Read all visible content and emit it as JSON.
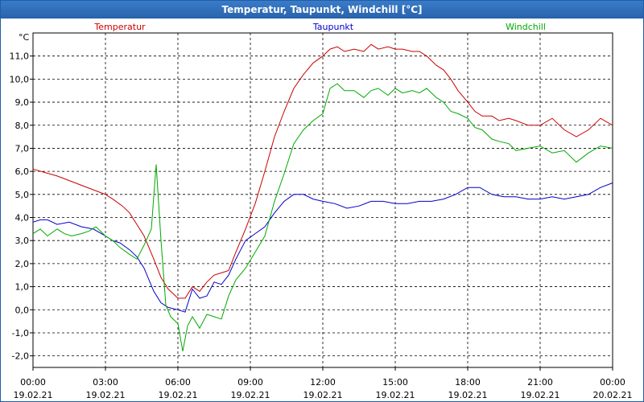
{
  "window": {
    "title": "Temperatur, Taupunkt, Windchill [°C]"
  },
  "chart_data": {
    "type": "line",
    "title": "Temperatur, Taupunkt, Windchill [°C]",
    "ylabel": "°C",
    "xlabel": "",
    "ylim": [
      -2.5,
      12.0
    ],
    "xlim": [
      0,
      24
    ],
    "yticks": [
      "-2,0",
      "-1,0",
      "0,0",
      "1,0",
      "2,0",
      "3,0",
      "4,0",
      "5,0",
      "6,0",
      "7,0",
      "8,0",
      "9,0",
      "10,0",
      "11,0"
    ],
    "ytick_values": [
      -2,
      -1,
      0,
      1,
      2,
      3,
      4,
      5,
      6,
      7,
      8,
      9,
      10,
      11
    ],
    "xticks": [
      {
        "time": "00:00",
        "date": "19.02.21",
        "hour": 0
      },
      {
        "time": "03:00",
        "date": "19.02.21",
        "hour": 3
      },
      {
        "time": "06:00",
        "date": "19.02.21",
        "hour": 6
      },
      {
        "time": "09:00",
        "date": "19.02.21",
        "hour": 9
      },
      {
        "time": "12:00",
        "date": "19.02.21",
        "hour": 12
      },
      {
        "time": "15:00",
        "date": "19.02.21",
        "hour": 15
      },
      {
        "time": "18:00",
        "date": "19.02.21",
        "hour": 18
      },
      {
        "time": "21:00",
        "date": "19.02.21",
        "hour": 21
      },
      {
        "time": "00:00",
        "date": "20.02.21",
        "hour": 24
      }
    ],
    "grid": true,
    "series": [
      {
        "name": "Temperatur",
        "color": "#cc0000",
        "x": [
          0,
          0.5,
          1,
          1.5,
          2,
          2.5,
          3,
          3.3,
          3.7,
          4,
          4.3,
          4.6,
          5,
          5.3,
          5.6,
          6,
          6.3,
          6.6,
          6.9,
          7.2,
          7.5,
          7.8,
          8.1,
          8.4,
          8.8,
          9.2,
          9.6,
          10,
          10.4,
          10.8,
          11.2,
          11.6,
          12,
          12.3,
          12.6,
          12.9,
          13.3,
          13.7,
          14,
          14.3,
          14.7,
          15,
          15.3,
          15.7,
          16,
          16.3,
          16.7,
          17,
          17.3,
          17.6,
          18,
          18.3,
          18.6,
          19,
          19.3,
          19.7,
          20,
          20.5,
          21,
          21.5,
          22,
          22.5,
          23,
          23.5,
          24
        ],
        "y": [
          6.1,
          5.95,
          5.8,
          5.6,
          5.4,
          5.2,
          5.0,
          4.8,
          4.5,
          4.2,
          3.7,
          3.2,
          2.2,
          1.4,
          0.9,
          0.5,
          0.5,
          1.0,
          0.8,
          1.2,
          1.5,
          1.6,
          1.7,
          2.5,
          3.5,
          4.6,
          6.0,
          7.5,
          8.6,
          9.6,
          10.2,
          10.7,
          11.0,
          11.3,
          11.4,
          11.2,
          11.3,
          11.2,
          11.5,
          11.3,
          11.4,
          11.3,
          11.3,
          11.2,
          11.2,
          11.0,
          10.6,
          10.4,
          10.0,
          9.5,
          9.0,
          8.6,
          8.4,
          8.4,
          8.2,
          8.3,
          8.2,
          8.0,
          8.0,
          8.3,
          7.8,
          7.5,
          7.8,
          8.3,
          8.0
        ]
      },
      {
        "name": "Taupunkt",
        "color": "#0000cc",
        "x": [
          0,
          0.3,
          0.6,
          1,
          1.5,
          2,
          2.5,
          3,
          3.3,
          3.6,
          4,
          4.3,
          4.6,
          5,
          5.3,
          5.6,
          6,
          6.3,
          6.6,
          6.9,
          7.2,
          7.5,
          7.8,
          8.1,
          8.4,
          8.8,
          9.2,
          9.6,
          10,
          10.4,
          10.8,
          11.2,
          11.6,
          12,
          12.5,
          13,
          13.5,
          14,
          14.5,
          15,
          15.5,
          16,
          16.5,
          17,
          17.5,
          18,
          18.5,
          19,
          19.5,
          20,
          20.5,
          21,
          21.5,
          22,
          22.5,
          23,
          23.5,
          24
        ],
        "y": [
          3.8,
          3.9,
          3.9,
          3.7,
          3.8,
          3.6,
          3.5,
          3.2,
          3.0,
          2.9,
          2.6,
          2.3,
          1.8,
          0.8,
          0.3,
          0.1,
          0.0,
          -0.1,
          0.9,
          0.5,
          0.6,
          1.2,
          1.1,
          1.5,
          2.2,
          3.0,
          3.3,
          3.6,
          4.2,
          4.7,
          5.0,
          5.0,
          4.8,
          4.7,
          4.6,
          4.4,
          4.5,
          4.7,
          4.7,
          4.6,
          4.6,
          4.7,
          4.7,
          4.8,
          5.0,
          5.3,
          5.3,
          5.0,
          4.9,
          4.9,
          4.8,
          4.8,
          4.9,
          4.8,
          4.9,
          5.0,
          5.3,
          5.5
        ]
      },
      {
        "name": "Windchill",
        "color": "#00aa00",
        "x": [
          0,
          0.3,
          0.6,
          1,
          1.3,
          1.6,
          2,
          2.3,
          2.6,
          3,
          3.3,
          3.6,
          4,
          4.3,
          4.6,
          4.9,
          5.1,
          5.3,
          5.5,
          5.7,
          6,
          6.2,
          6.4,
          6.6,
          6.9,
          7.2,
          7.5,
          7.8,
          8.1,
          8.4,
          8.8,
          9.2,
          9.6,
          10,
          10.4,
          10.8,
          11.2,
          11.6,
          12,
          12.3,
          12.6,
          12.9,
          13.3,
          13.7,
          14,
          14.3,
          14.7,
          15,
          15.3,
          15.7,
          16,
          16.3,
          16.7,
          17,
          17.3,
          17.6,
          18,
          18.3,
          18.6,
          19,
          19.3,
          19.7,
          20,
          20.5,
          21,
          21.5,
          22,
          22.5,
          23,
          23.5,
          24
        ],
        "y": [
          3.3,
          3.5,
          3.2,
          3.5,
          3.3,
          3.2,
          3.3,
          3.4,
          3.6,
          3.2,
          3.0,
          2.7,
          2.4,
          2.2,
          2.8,
          3.5,
          6.3,
          3.0,
          0.2,
          -0.3,
          -0.6,
          -1.8,
          -0.7,
          -0.3,
          -0.8,
          -0.2,
          -0.3,
          -0.4,
          0.6,
          1.3,
          1.8,
          2.5,
          3.2,
          4.7,
          5.9,
          7.2,
          7.8,
          8.2,
          8.5,
          9.6,
          9.8,
          9.5,
          9.5,
          9.2,
          9.5,
          9.6,
          9.3,
          9.6,
          9.4,
          9.5,
          9.4,
          9.6,
          9.2,
          9.0,
          8.6,
          8.5,
          8.3,
          7.9,
          7.8,
          7.4,
          7.3,
          7.2,
          6.9,
          7.0,
          7.1,
          6.8,
          6.9,
          6.4,
          6.8,
          7.1,
          7.0
        ]
      }
    ]
  }
}
